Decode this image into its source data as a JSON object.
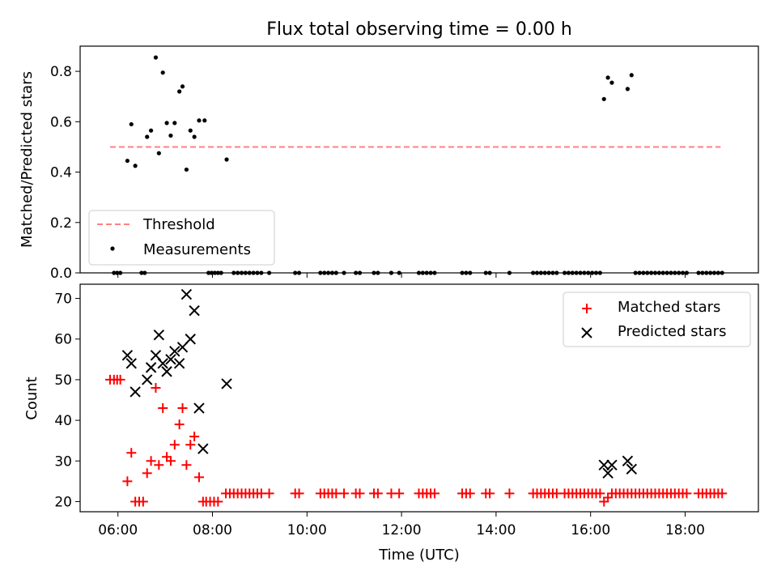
{
  "title": "Flux total observing time = 0.00 h",
  "chart_data": [
    {
      "type": "scatter",
      "panel": "top",
      "ylabel": "Matched/Predicted stars",
      "xlabel": "",
      "xlim_hours": [
        5.2,
        19.55
      ],
      "ylim": [
        0,
        0.9
      ],
      "yticks": [
        0.0,
        0.2,
        0.4,
        0.6,
        0.8
      ],
      "ytick_labels": [
        "0.0",
        "0.2",
        "0.4",
        "0.6",
        "0.8"
      ],
      "legend": {
        "position": "lower-left",
        "entries": [
          "Threshold",
          "Measurements"
        ]
      },
      "threshold": {
        "name": "Threshold",
        "value": 0.5,
        "x_range": [
          "05:50",
          "18:45"
        ],
        "color": "#ff8080",
        "style": "dashed"
      },
      "measurements": {
        "name": "Measurements",
        "color": "#000000",
        "points": [
          [
            "06:12",
            0.445
          ],
          [
            "06:17",
            0.59
          ],
          [
            "06:22",
            0.425
          ],
          [
            "06:37",
            0.54
          ],
          [
            "06:42",
            0.565
          ],
          [
            "06:48",
            0.855
          ],
          [
            "06:52",
            0.475
          ],
          [
            "06:57",
            0.795
          ],
          [
            "07:02",
            0.595
          ],
          [
            "07:07",
            0.545
          ],
          [
            "07:12",
            0.595
          ],
          [
            "07:18",
            0.72
          ],
          [
            "07:22",
            0.74
          ],
          [
            "07:27",
            0.41
          ],
          [
            "07:32",
            0.565
          ],
          [
            "07:37",
            0.54
          ],
          [
            "07:43",
            0.605
          ],
          [
            "07:50",
            0.605
          ],
          [
            "08:18",
            0.45
          ],
          [
            "16:17",
            0.69
          ],
          [
            "16:22",
            0.775
          ],
          [
            "16:27",
            0.755
          ],
          [
            "16:47",
            0.73
          ],
          [
            "16:52",
            0.785
          ],
          [
            "05:55",
            0
          ],
          [
            "05:59",
            0
          ],
          [
            "06:03",
            0
          ],
          [
            "06:30",
            0
          ],
          [
            "06:34",
            0
          ],
          [
            "07:55",
            0
          ],
          [
            "07:59",
            0
          ],
          [
            "08:03",
            0
          ],
          [
            "08:07",
            0
          ],
          [
            "08:11",
            0
          ],
          [
            "08:27",
            0
          ],
          [
            "08:32",
            0
          ],
          [
            "08:37",
            0
          ],
          [
            "08:42",
            0
          ],
          [
            "08:47",
            0
          ],
          [
            "08:52",
            0
          ],
          [
            "08:57",
            0
          ],
          [
            "09:02",
            0
          ],
          [
            "09:12",
            0
          ],
          [
            "09:45",
            0
          ],
          [
            "09:50",
            0
          ],
          [
            "10:17",
            0
          ],
          [
            "10:22",
            0
          ],
          [
            "10:27",
            0
          ],
          [
            "10:32",
            0
          ],
          [
            "10:37",
            0
          ],
          [
            "10:47",
            0
          ],
          [
            "11:02",
            0
          ],
          [
            "11:07",
            0
          ],
          [
            "11:25",
            0
          ],
          [
            "11:30",
            0
          ],
          [
            "11:47",
            0
          ],
          [
            "11:57",
            0
          ],
          [
            "12:22",
            0
          ],
          [
            "12:27",
            0
          ],
          [
            "12:32",
            0
          ],
          [
            "12:37",
            0
          ],
          [
            "12:42",
            0
          ],
          [
            "13:17",
            0
          ],
          [
            "13:22",
            0
          ],
          [
            "13:27",
            0
          ],
          [
            "13:47",
            0
          ],
          [
            "13:52",
            0
          ],
          [
            "14:17",
            0
          ],
          [
            "14:47",
            0
          ],
          [
            "14:52",
            0
          ],
          [
            "14:57",
            0
          ],
          [
            "15:02",
            0
          ],
          [
            "15:07",
            0
          ],
          [
            "15:12",
            0
          ],
          [
            "15:17",
            0
          ],
          [
            "15:27",
            0
          ],
          [
            "15:32",
            0
          ],
          [
            "15:37",
            0
          ],
          [
            "15:42",
            0
          ],
          [
            "15:47",
            0
          ],
          [
            "15:52",
            0
          ],
          [
            "15:57",
            0
          ],
          [
            "16:02",
            0
          ],
          [
            "16:07",
            0
          ],
          [
            "16:12",
            0
          ],
          [
            "16:57",
            0
          ],
          [
            "17:02",
            0
          ],
          [
            "17:07",
            0
          ],
          [
            "17:12",
            0
          ],
          [
            "17:17",
            0
          ],
          [
            "17:22",
            0
          ],
          [
            "17:27",
            0
          ],
          [
            "17:32",
            0
          ],
          [
            "17:37",
            0
          ],
          [
            "17:42",
            0
          ],
          [
            "17:47",
            0
          ],
          [
            "17:52",
            0
          ],
          [
            "17:57",
            0
          ],
          [
            "18:02",
            0
          ],
          [
            "18:17",
            0
          ],
          [
            "18:22",
            0
          ],
          [
            "18:27",
            0
          ],
          [
            "18:32",
            0
          ],
          [
            "18:37",
            0
          ],
          [
            "18:42",
            0
          ],
          [
            "18:47",
            0
          ]
        ]
      }
    },
    {
      "type": "scatter",
      "panel": "bottom",
      "ylabel": "Count",
      "xlabel": "Time (UTC)",
      "xlim_hours": [
        5.2,
        19.55
      ],
      "ylim": [
        17.5,
        73.5
      ],
      "yticks": [
        20,
        30,
        40,
        50,
        60,
        70
      ],
      "ytick_labels": [
        "20",
        "30",
        "40",
        "50",
        "60",
        "70"
      ],
      "xticks_hours": [
        6,
        8,
        10,
        12,
        14,
        16,
        18
      ],
      "xtick_labels": [
        "06:00",
        "08:00",
        "10:00",
        "12:00",
        "14:00",
        "16:00",
        "18:00"
      ],
      "legend": {
        "position": "top-right",
        "entries": [
          "Matched stars",
          "Predicted stars"
        ]
      },
      "series": [
        {
          "name": "Matched stars",
          "marker": "plus",
          "color": "#ff0000",
          "points": [
            [
              "05:50",
              50
            ],
            [
              "05:55",
              50
            ],
            [
              "05:59",
              50
            ],
            [
              "06:03",
              50
            ],
            [
              "06:12",
              25
            ],
            [
              "06:17",
              32
            ],
            [
              "06:22",
              20
            ],
            [
              "06:27",
              20
            ],
            [
              "06:32",
              20
            ],
            [
              "06:37",
              27
            ],
            [
              "06:42",
              30
            ],
            [
              "06:48",
              48
            ],
            [
              "06:52",
              29
            ],
            [
              "06:57",
              43
            ],
            [
              "07:02",
              31
            ],
            [
              "07:07",
              30
            ],
            [
              "07:12",
              34
            ],
            [
              "07:18",
              39
            ],
            [
              "07:22",
              43
            ],
            [
              "07:27",
              29
            ],
            [
              "07:32",
              34
            ],
            [
              "07:37",
              36
            ],
            [
              "07:43",
              26
            ],
            [
              "07:48",
              20
            ],
            [
              "07:52",
              20
            ],
            [
              "07:57",
              20
            ],
            [
              "08:02",
              20
            ],
            [
              "08:07",
              20
            ],
            [
              "08:17",
              22
            ],
            [
              "08:22",
              22
            ],
            [
              "08:27",
              22
            ],
            [
              "08:32",
              22
            ],
            [
              "08:37",
              22
            ],
            [
              "08:42",
              22
            ],
            [
              "08:47",
              22
            ],
            [
              "08:52",
              22
            ],
            [
              "08:57",
              22
            ],
            [
              "09:02",
              22
            ],
            [
              "09:12",
              22
            ],
            [
              "09:45",
              22
            ],
            [
              "09:50",
              22
            ],
            [
              "10:17",
              22
            ],
            [
              "10:22",
              22
            ],
            [
              "10:27",
              22
            ],
            [
              "10:32",
              22
            ],
            [
              "10:37",
              22
            ],
            [
              "10:47",
              22
            ],
            [
              "11:02",
              22
            ],
            [
              "11:07",
              22
            ],
            [
              "11:25",
              22
            ],
            [
              "11:30",
              22
            ],
            [
              "11:47",
              22
            ],
            [
              "11:57",
              22
            ],
            [
              "12:22",
              22
            ],
            [
              "12:27",
              22
            ],
            [
              "12:32",
              22
            ],
            [
              "12:37",
              22
            ],
            [
              "12:42",
              22
            ],
            [
              "13:17",
              22
            ],
            [
              "13:22",
              22
            ],
            [
              "13:27",
              22
            ],
            [
              "13:47",
              22
            ],
            [
              "13:52",
              22
            ],
            [
              "14:17",
              22
            ],
            [
              "14:47",
              22
            ],
            [
              "14:52",
              22
            ],
            [
              "14:57",
              22
            ],
            [
              "15:02",
              22
            ],
            [
              "15:07",
              22
            ],
            [
              "15:12",
              22
            ],
            [
              "15:17",
              22
            ],
            [
              "15:27",
              22
            ],
            [
              "15:32",
              22
            ],
            [
              "15:37",
              22
            ],
            [
              "15:42",
              22
            ],
            [
              "15:47",
              22
            ],
            [
              "15:52",
              22
            ],
            [
              "15:57",
              22
            ],
            [
              "16:02",
              22
            ],
            [
              "16:07",
              22
            ],
            [
              "16:12",
              22
            ],
            [
              "16:17",
              20
            ],
            [
              "16:22",
              21
            ],
            [
              "16:27",
              22
            ],
            [
              "16:32",
              22
            ],
            [
              "16:37",
              22
            ],
            [
              "16:42",
              22
            ],
            [
              "16:47",
              22
            ],
            [
              "16:52",
              22
            ],
            [
              "16:57",
              22
            ],
            [
              "17:02",
              22
            ],
            [
              "17:07",
              22
            ],
            [
              "17:12",
              22
            ],
            [
              "17:17",
              22
            ],
            [
              "17:22",
              22
            ],
            [
              "17:27",
              22
            ],
            [
              "17:32",
              22
            ],
            [
              "17:37",
              22
            ],
            [
              "17:42",
              22
            ],
            [
              "17:47",
              22
            ],
            [
              "17:52",
              22
            ],
            [
              "17:57",
              22
            ],
            [
              "18:02",
              22
            ],
            [
              "18:17",
              22
            ],
            [
              "18:22",
              22
            ],
            [
              "18:27",
              22
            ],
            [
              "18:32",
              22
            ],
            [
              "18:37",
              22
            ],
            [
              "18:42",
              22
            ],
            [
              "18:47",
              22
            ]
          ]
        },
        {
          "name": "Predicted stars",
          "marker": "x",
          "color": "#000000",
          "points": [
            [
              "06:12",
              56
            ],
            [
              "06:17",
              54
            ],
            [
              "06:22",
              47
            ],
            [
              "06:37",
              50
            ],
            [
              "06:42",
              53
            ],
            [
              "06:48",
              56
            ],
            [
              "06:52",
              61
            ],
            [
              "06:57",
              54
            ],
            [
              "07:02",
              52
            ],
            [
              "07:07",
              55
            ],
            [
              "07:12",
              57
            ],
            [
              "07:18",
              54
            ],
            [
              "07:22",
              58
            ],
            [
              "07:27",
              71
            ],
            [
              "07:32",
              60
            ],
            [
              "07:37",
              67
            ],
            [
              "07:43",
              43
            ],
            [
              "07:48",
              33
            ],
            [
              "08:18",
              49
            ],
            [
              "16:17",
              29
            ],
            [
              "16:22",
              27
            ],
            [
              "16:27",
              29
            ],
            [
              "16:47",
              30
            ],
            [
              "16:52",
              28
            ]
          ]
        }
      ]
    }
  ]
}
